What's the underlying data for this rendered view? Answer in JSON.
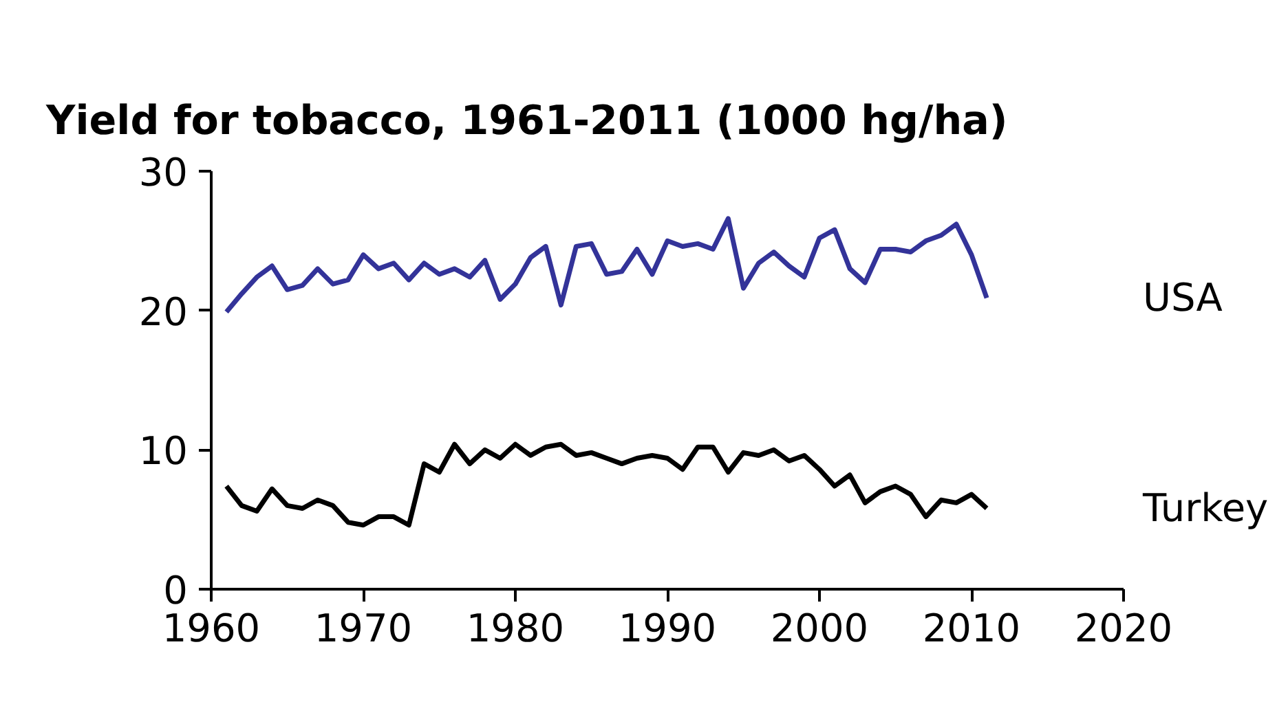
{
  "chart_data": {
    "type": "line",
    "title": "Yield for tobacco, 1961-2011 (1000 hg/ha)",
    "x": [
      1961,
      1962,
      1963,
      1964,
      1965,
      1966,
      1967,
      1968,
      1969,
      1970,
      1971,
      1972,
      1973,
      1974,
      1975,
      1976,
      1977,
      1978,
      1979,
      1980,
      1981,
      1982,
      1983,
      1984,
      1985,
      1986,
      1987,
      1988,
      1989,
      1990,
      1991,
      1992,
      1993,
      1994,
      1995,
      1996,
      1997,
      1998,
      1999,
      2000,
      2001,
      2002,
      2003,
      2004,
      2005,
      2006,
      2007,
      2008,
      2009,
      2010,
      2011
    ],
    "series": [
      {
        "name": "USA",
        "color": "#333399",
        "values": [
          19.9,
          21.2,
          22.4,
          23.2,
          21.5,
          21.8,
          23.0,
          21.9,
          22.2,
          24.0,
          23.0,
          23.4,
          22.2,
          23.4,
          22.6,
          23.0,
          22.4,
          23.6,
          20.8,
          21.9,
          23.8,
          24.6,
          20.4,
          24.6,
          24.8,
          22.6,
          22.8,
          24.4,
          22.6,
          25.0,
          24.6,
          24.8,
          24.4,
          26.6,
          21.6,
          23.4,
          24.2,
          23.2,
          22.4,
          25.2,
          25.8,
          23.0,
          22.0,
          24.4,
          24.4,
          24.2,
          25.0,
          25.4,
          26.2,
          24.0,
          20.9
        ]
      },
      {
        "name": "Turkey",
        "color": "#000000",
        "values": [
          7.4,
          6.0,
          5.6,
          7.2,
          6.0,
          5.8,
          6.4,
          6.0,
          4.8,
          4.6,
          5.2,
          5.2,
          4.6,
          9.0,
          8.4,
          10.4,
          9.0,
          10.0,
          9.4,
          10.4,
          9.6,
          10.2,
          10.4,
          9.6,
          9.8,
          9.4,
          9.0,
          9.4,
          9.6,
          9.4,
          8.6,
          10.2,
          10.2,
          8.4,
          9.8,
          9.6,
          10.0,
          9.2,
          9.6,
          8.6,
          7.4,
          8.2,
          6.2,
          7.0,
          7.4,
          6.8,
          5.2,
          6.4,
          6.2,
          6.8,
          5.8
        ]
      }
    ],
    "xlim": [
      1960,
      2020
    ],
    "xticks": [
      1960,
      1970,
      1980,
      1990,
      2000,
      2010,
      2020
    ],
    "ylim": [
      0,
      30
    ],
    "yticks": [
      0,
      10,
      20,
      30
    ],
    "grid": false,
    "marker": "none",
    "line_style": "solid"
  }
}
